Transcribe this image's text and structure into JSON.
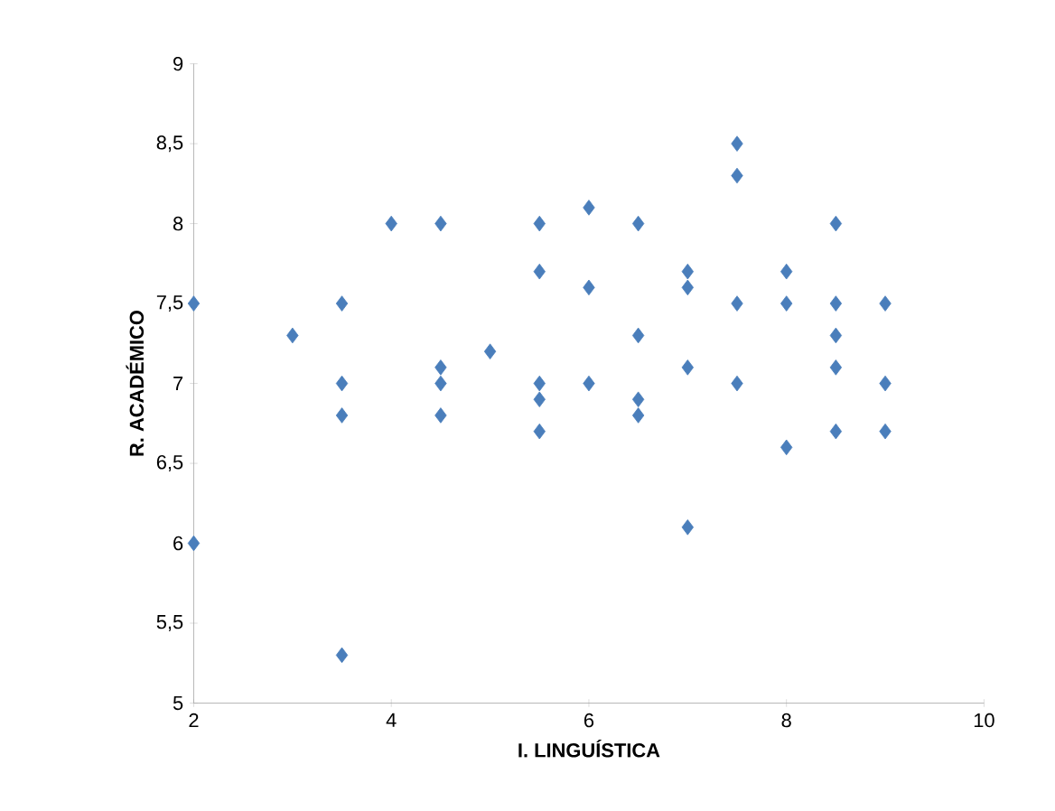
{
  "chart_data": {
    "type": "scatter",
    "xlabel": "I. LINGUÍSTICA",
    "ylabel": "R. ACADÉMICO",
    "marker": "diamond",
    "color": "#4a7ebb",
    "x": [
      2,
      2,
      3,
      3.5,
      3.5,
      3.5,
      3.5,
      4,
      4.5,
      4.5,
      4.5,
      4.5,
      5,
      5.5,
      5.5,
      5.5,
      5.5,
      5.5,
      6,
      6,
      6,
      6.5,
      6.5,
      6.5,
      6.5,
      7,
      7,
      7,
      7,
      7.5,
      7.5,
      7.5,
      7.5,
      8,
      8,
      8,
      8.5,
      8.5,
      8.5,
      8.5,
      8.5,
      9,
      9,
      9
    ],
    "values": [
      7.5,
      6,
      7.3,
      7.5,
      7.0,
      6.8,
      5.3,
      8,
      8,
      7.1,
      7.0,
      6.8,
      7.2,
      8,
      7.7,
      7.0,
      6.9,
      6.7,
      8.1,
      7.6,
      7.0,
      8,
      7.3,
      6.9,
      6.8,
      7.7,
      7.6,
      7.1,
      6.1,
      8.5,
      8.3,
      7.5,
      7.0,
      7.7,
      7.5,
      6.6,
      8,
      7.5,
      7.3,
      7.1,
      6.7,
      7.5,
      7.0,
      6.7
    ],
    "xlim": [
      2,
      10
    ],
    "xticks": [
      2,
      4,
      6,
      8,
      10
    ],
    "ylim": [
      5,
      9
    ],
    "yticks": [
      5,
      {
        "value": 5.5,
        "label": "5,5"
      },
      6,
      {
        "value": 6.5,
        "label": "6,5"
      },
      7,
      {
        "value": 7.5,
        "label": "7,5"
      },
      8,
      {
        "value": 8.5,
        "label": "8,5"
      },
      9
    ]
  }
}
